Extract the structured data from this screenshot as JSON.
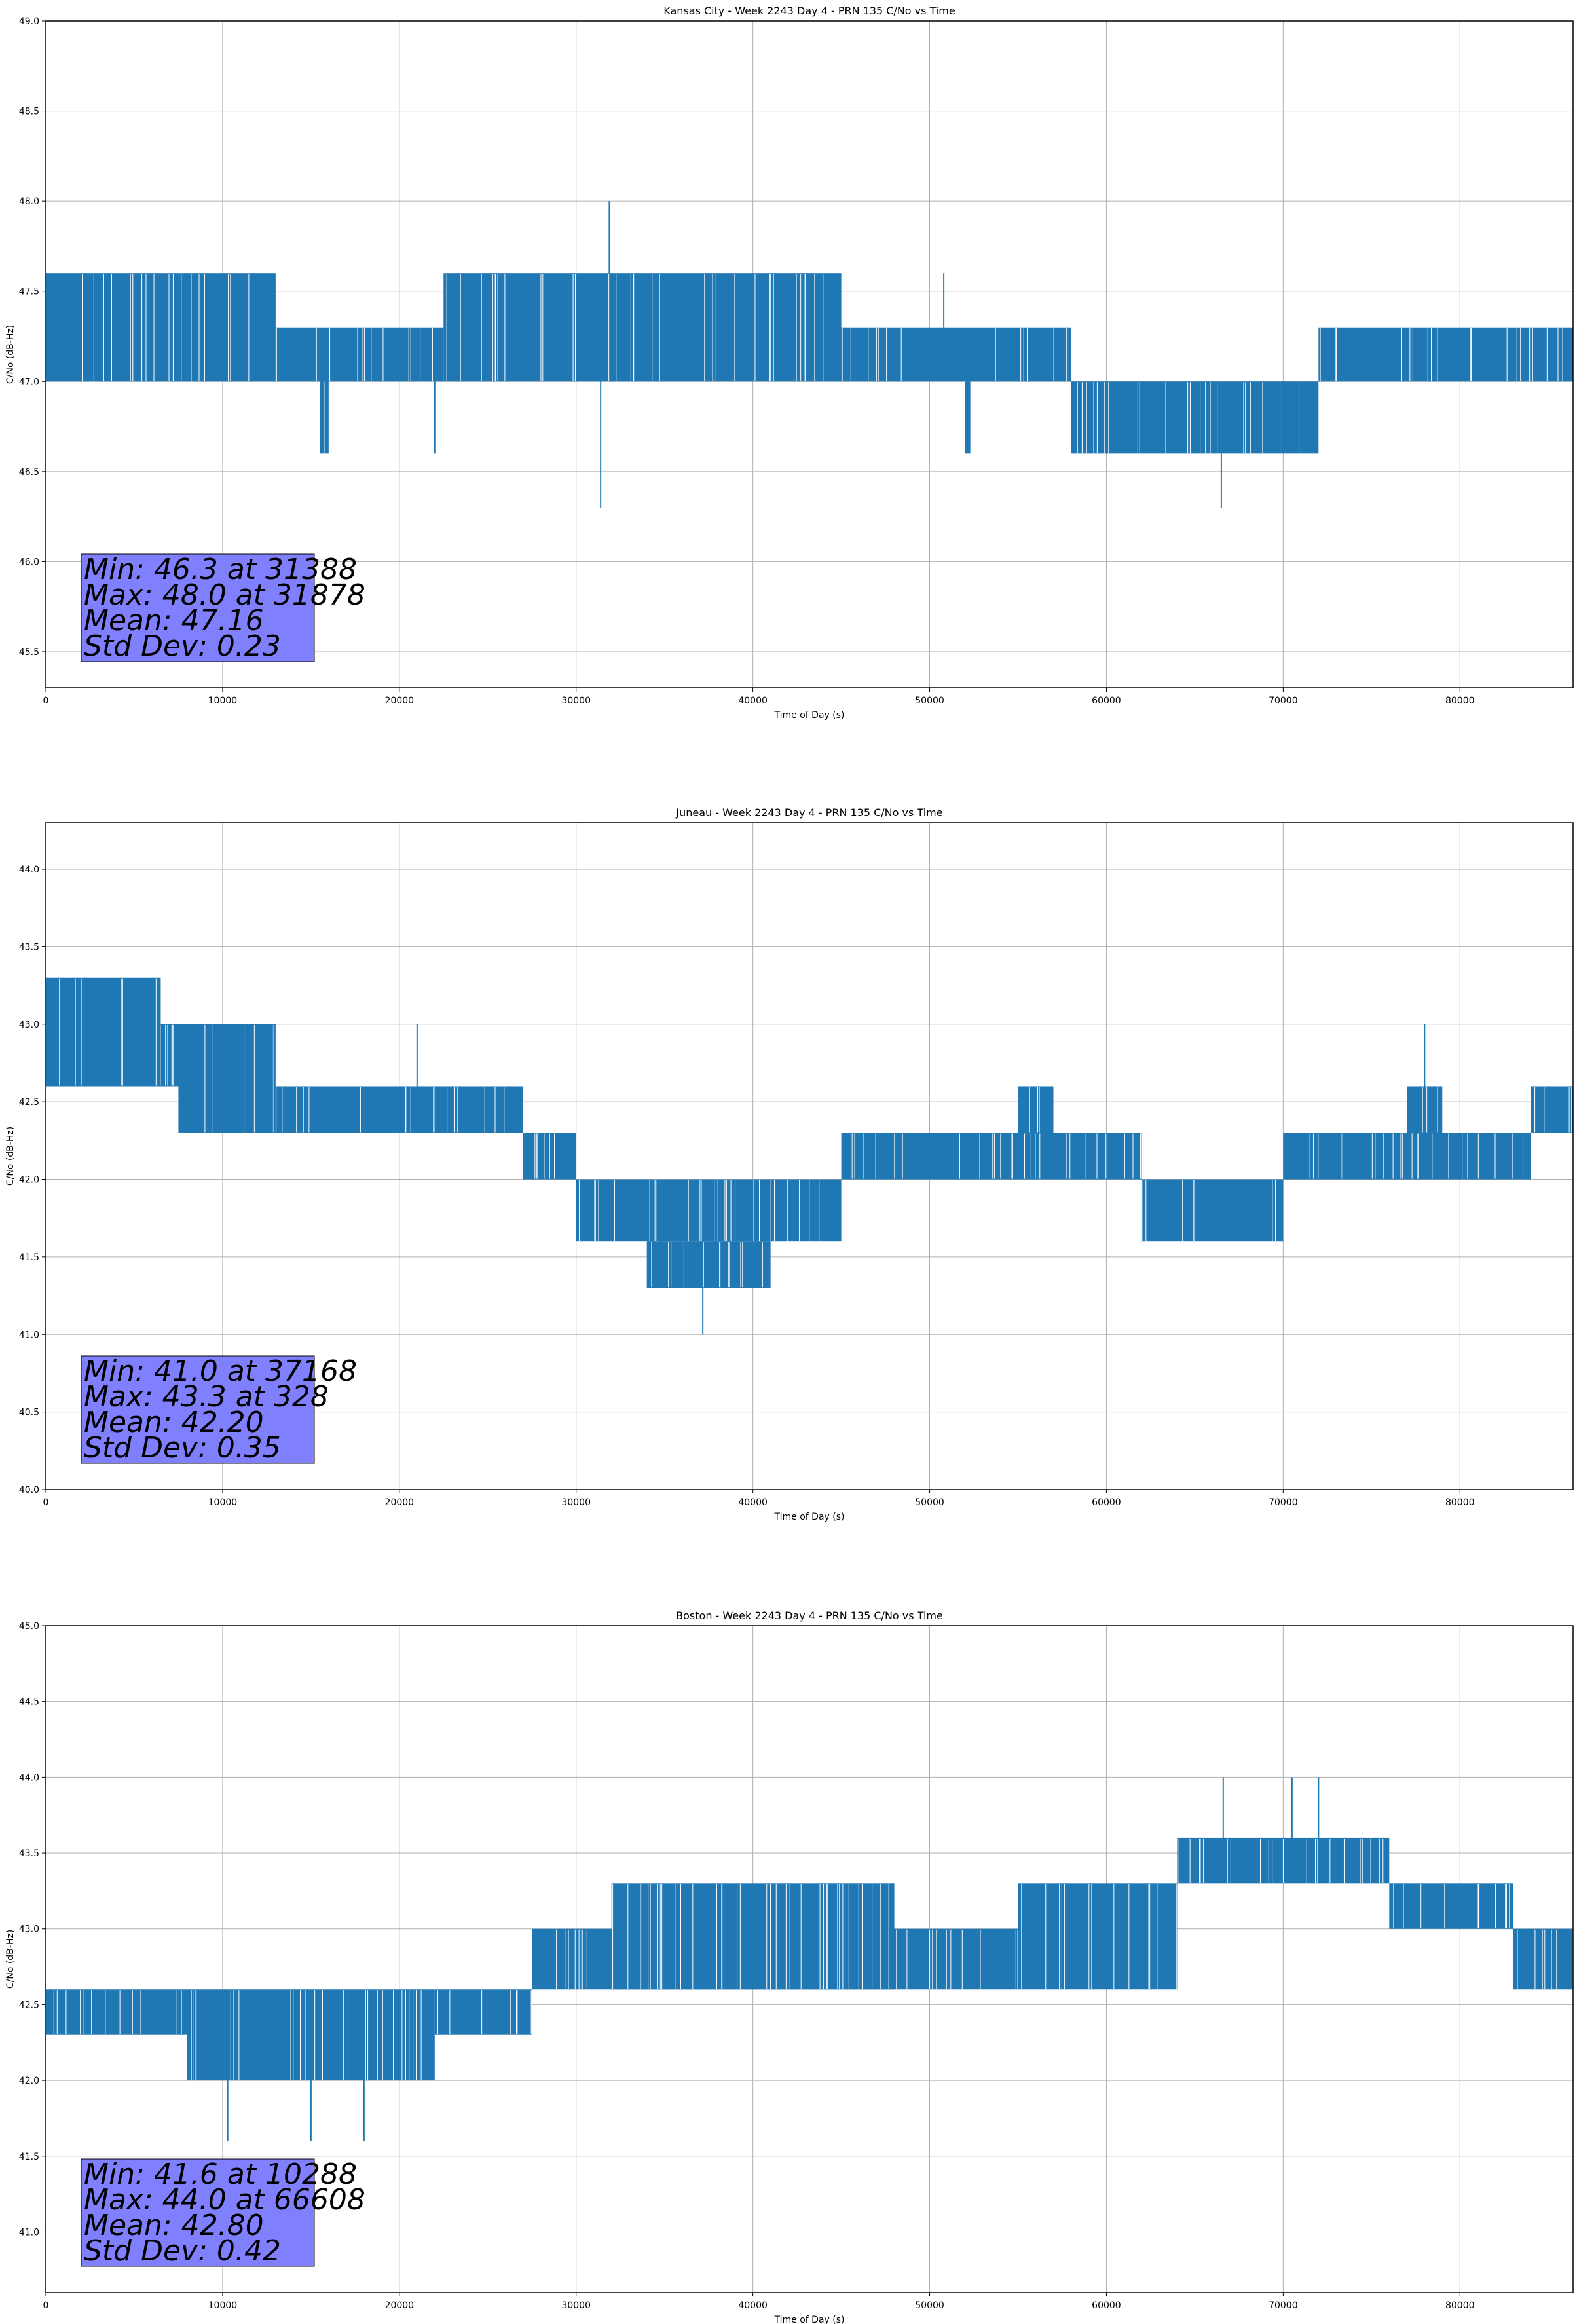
{
  "figure": {
    "type": "line",
    "series_color": "#1f77b4",
    "stats_box_color": "#8080ff",
    "grid": true
  },
  "chart_data": [
    {
      "type": "line",
      "title": "Kansas City - Week 2243 Day 4 - PRN 135 C/No vs Time",
      "xlabel": "Time of Day (s)",
      "ylabel": "C/No (dB-Hz)",
      "xlim": [
        0,
        86400
      ],
      "ylim": [
        45.3,
        49.0
      ],
      "xticks": [
        0,
        10000,
        20000,
        30000,
        40000,
        50000,
        60000,
        70000,
        80000
      ],
      "xtick_labels": [
        "0",
        "10000",
        "20000",
        "30000",
        "40000",
        "50000",
        "60000",
        "70000",
        "80000"
      ],
      "yticks": [
        45.5,
        46.0,
        46.5,
        47.0,
        47.5,
        48.0,
        48.5,
        49.0
      ],
      "ytick_labels": [
        "45.5",
        "46.0",
        "46.5",
        "47.0",
        "47.5",
        "48.0",
        "48.5",
        "49.0"
      ],
      "series": [
        {
          "values_description_levels": [
            46.3,
            46.6,
            47.0,
            47.3,
            47.6,
            48.0
          ],
          "segments": [
            {
              "x": [
                0,
                13000
              ],
              "low": 47.0,
              "high": 47.6
            },
            {
              "x": [
                13000,
                22500
              ],
              "low": 47.0,
              "high": 47.3
            },
            {
              "x": [
                15500,
                16000
              ],
              "low": 46.6,
              "high": 47.0
            },
            {
              "x": [
                22500,
                45000
              ],
              "low": 47.0,
              "high": 47.6
            },
            {
              "x": [
                45000,
                58000
              ],
              "low": 47.0,
              "high": 47.3
            },
            {
              "x": [
                52000,
                52300
              ],
              "low": 46.6,
              "high": 47.0
            },
            {
              "x": [
                58000,
                72000
              ],
              "low": 46.6,
              "high": 47.0
            },
            {
              "x": [
                72000,
                86400
              ],
              "low": 47.0,
              "high": 47.3
            }
          ],
          "spikes": [
            {
              "x": 31388,
              "y": 46.3
            },
            {
              "x": 31878,
              "y": 48.0
            },
            {
              "x": 50800,
              "y": 47.6
            },
            {
              "x": 66500,
              "y": 46.3
            },
            {
              "x": 22000,
              "y": 46.6
            }
          ]
        }
      ],
      "stats": [
        "Min: 46.3 at 31388",
        "Max: 48.0 at 31878",
        "Mean: 47.16",
        "Std Dev: 0.23"
      ]
    },
    {
      "type": "line",
      "title": "Juneau - Week 2243 Day 4 - PRN 135 C/No vs Time",
      "xlabel": "Time of Day (s)",
      "ylabel": "C/No (dB-Hz)",
      "xlim": [
        0,
        86400
      ],
      "ylim": [
        40.0,
        44.3
      ],
      "xticks": [
        0,
        10000,
        20000,
        30000,
        40000,
        50000,
        60000,
        70000,
        80000
      ],
      "xtick_labels": [
        "0",
        "10000",
        "20000",
        "30000",
        "40000",
        "50000",
        "60000",
        "70000",
        "80000"
      ],
      "yticks": [
        40.0,
        40.5,
        41.0,
        41.5,
        42.0,
        42.5,
        43.0,
        43.5,
        44.0
      ],
      "ytick_labels": [
        "40.0",
        "40.5",
        "41.0",
        "41.5",
        "42.0",
        "42.5",
        "43.0",
        "43.5",
        "44.0"
      ],
      "series": [
        {
          "segments": [
            {
              "x": [
                0,
                8000
              ],
              "low": 42.6,
              "high": 43.0
            },
            {
              "x": [
                0,
                6500
              ],
              "low": 42.6,
              "high": 43.3
            },
            {
              "x": [
                7500,
                13000
              ],
              "low": 42.3,
              "high": 43.0
            },
            {
              "x": [
                13000,
                27000
              ],
              "low": 42.3,
              "high": 42.6
            },
            {
              "x": [
                27000,
                30000
              ],
              "low": 42.0,
              "high": 42.3
            },
            {
              "x": [
                30000,
                45000
              ],
              "low": 41.6,
              "high": 42.0
            },
            {
              "x": [
                34000,
                41000
              ],
              "low": 41.3,
              "high": 41.6
            },
            {
              "x": [
                45000,
                62000
              ],
              "low": 42.0,
              "high": 42.3
            },
            {
              "x": [
                55000,
                57000
              ],
              "low": 42.3,
              "high": 42.6
            },
            {
              "x": [
                62000,
                70000
              ],
              "low": 41.6,
              "high": 42.0
            },
            {
              "x": [
                70000,
                84000
              ],
              "low": 42.0,
              "high": 42.3
            },
            {
              "x": [
                77000,
                79000
              ],
              "low": 42.3,
              "high": 42.6
            },
            {
              "x": [
                84000,
                86400
              ],
              "low": 42.3,
              "high": 42.6
            }
          ],
          "spikes": [
            {
              "x": 328,
              "y": 43.3
            },
            {
              "x": 37168,
              "y": 41.0
            },
            {
              "x": 21000,
              "y": 43.0
            },
            {
              "x": 78000,
              "y": 43.0
            }
          ]
        }
      ],
      "stats": [
        "Min: 41.0 at 37168",
        "Max: 43.3 at 328",
        "Mean: 42.20",
        "Std Dev: 0.35"
      ]
    },
    {
      "type": "line",
      "title": "Boston - Week 2243 Day 4 - PRN 135 C/No vs Time",
      "xlabel": "Time of Day (s)",
      "ylabel": "C/No (dB-Hz)",
      "xlim": [
        0,
        86400
      ],
      "ylim": [
        40.6,
        45.0
      ],
      "xticks": [
        0,
        10000,
        20000,
        30000,
        40000,
        50000,
        60000,
        70000,
        80000
      ],
      "xtick_labels": [
        "0",
        "10000",
        "20000",
        "30000",
        "40000",
        "50000",
        "60000",
        "70000",
        "80000"
      ],
      "yticks": [
        41.0,
        41.5,
        42.0,
        42.5,
        43.0,
        43.5,
        44.0,
        44.5,
        45.0
      ],
      "ytick_labels": [
        "41.0",
        "41.5",
        "42.0",
        "42.5",
        "43.0",
        "43.5",
        "44.0",
        "44.5",
        "45.0"
      ],
      "series": [
        {
          "segments": [
            {
              "x": [
                0,
                8000
              ],
              "low": 42.3,
              "high": 42.6
            },
            {
              "x": [
                8000,
                22000
              ],
              "low": 42.0,
              "high": 42.6
            },
            {
              "x": [
                22000,
                27500
              ],
              "low": 42.3,
              "high": 42.6
            },
            {
              "x": [
                27500,
                32000
              ],
              "low": 42.6,
              "high": 43.0
            },
            {
              "x": [
                32000,
                55000
              ],
              "low": 42.6,
              "high": 43.0
            },
            {
              "x": [
                32000,
                48000
              ],
              "low": 42.6,
              "high": 43.3
            },
            {
              "x": [
                55000,
                64000
              ],
              "low": 42.6,
              "high": 43.3
            },
            {
              "x": [
                64000,
                76000
              ],
              "low": 43.3,
              "high": 43.6
            },
            {
              "x": [
                76000,
                83000
              ],
              "low": 43.0,
              "high": 43.3
            },
            {
              "x": [
                83000,
                86400
              ],
              "low": 42.6,
              "high": 43.0
            }
          ],
          "spikes": [
            {
              "x": 10288,
              "y": 41.6
            },
            {
              "x": 66608,
              "y": 44.0
            },
            {
              "x": 70500,
              "y": 44.0
            },
            {
              "x": 72000,
              "y": 44.0
            },
            {
              "x": 18000,
              "y": 41.6
            },
            {
              "x": 15000,
              "y": 41.6
            }
          ]
        }
      ],
      "stats": [
        "Min: 41.6 at 10288",
        "Max: 44.0 at 66608",
        "Mean: 42.80",
        "Std Dev: 0.42"
      ]
    }
  ]
}
